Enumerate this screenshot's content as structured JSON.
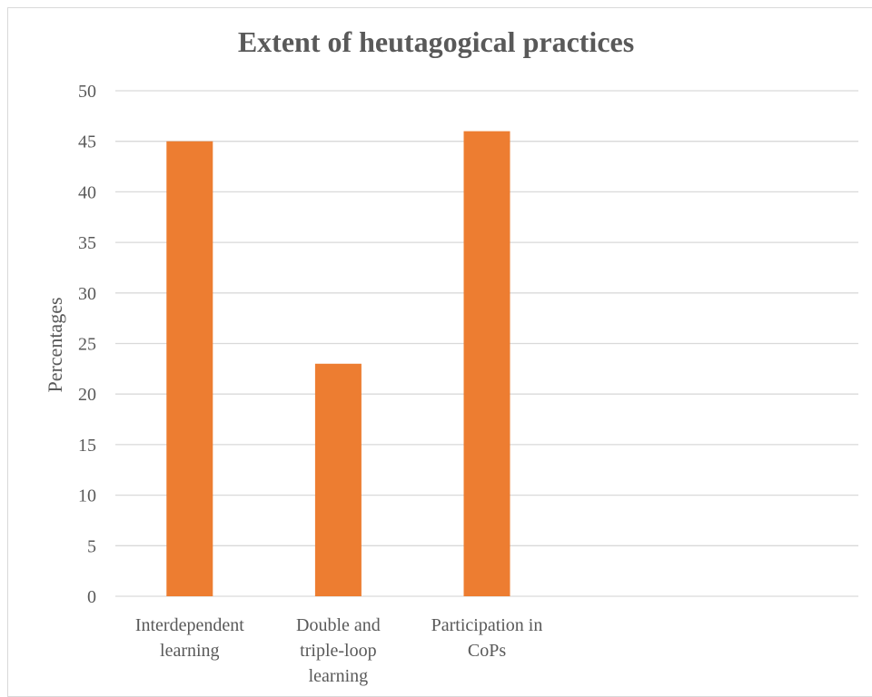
{
  "chart_data": {
    "type": "bar",
    "title": "Extent of heutagogical practices",
    "ylabel": "Percentages",
    "xlabel": "",
    "categories": [
      [
        "Interdependent",
        "learning"
      ],
      [
        "Double and",
        "triple-loop",
        "learning"
      ],
      [
        "Participation in",
        "CoPs"
      ]
    ],
    "values": [
      45,
      23,
      46
    ],
    "ylim": [
      0,
      50
    ],
    "ytick_step": 5,
    "grid": true,
    "legend": "none",
    "bar_color": "#ED7D31",
    "grid_color": "#D9D9D9"
  }
}
